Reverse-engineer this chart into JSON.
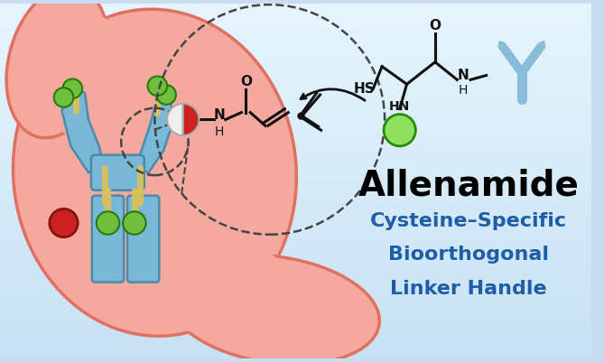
{
  "title": "Allenamide",
  "subtitle_lines": [
    "Cysteine–Specific",
    "Bioorthogonal",
    "Linker Handle"
  ],
  "title_color": "#000000",
  "subtitle_color": "#1e5ea8",
  "bg_top": "#c8dff0",
  "bg_bottom": "#e8f4fb",
  "cell_color": "#f5a99e",
  "cell_edge": "#e07060",
  "ab_color": "#7ab8d8",
  "ab_edge": "#4a8aaa",
  "linker_gold": "#d4c060",
  "drug_red": "#cc2222",
  "payload_green": "#70c040",
  "mol_line_color": "#111111",
  "dash_circle_color": "#444444",
  "arrow_color": "#111111",
  "ab_icon_color": "#88bcd8"
}
